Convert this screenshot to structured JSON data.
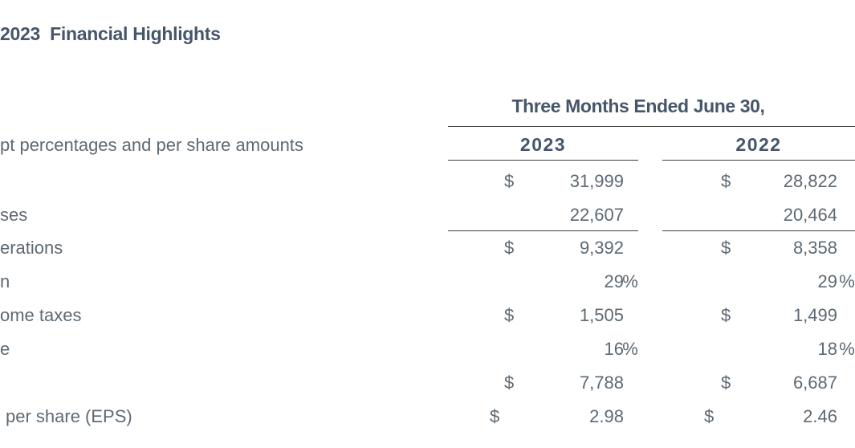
{
  "page": {
    "title": "2023  Financial Highlights",
    "subtitle_fragment": "pt percentages and per share amounts"
  },
  "colors": {
    "heading": "#46566a",
    "body": "#5e6973",
    "rule": "#3c3c3c"
  },
  "table": {
    "group_header": "Three Months Ended June 30,",
    "columns": [
      {
        "label": "2023"
      },
      {
        "label": "2022"
      }
    ],
    "rows": [
      {
        "label": "",
        "cells": [
          {
            "dollar": "$",
            "value": "31,999",
            "suffix": ""
          },
          {
            "dollar": "$",
            "value": "28,822",
            "suffix": ""
          }
        ]
      },
      {
        "label": "ses",
        "cells": [
          {
            "dollar": "",
            "value": "22,607",
            "suffix": ""
          },
          {
            "dollar": "",
            "value": "20,464",
            "suffix": ""
          }
        ]
      },
      {
        "label": "erations",
        "cells": [
          {
            "dollar": "$",
            "value": "9,392",
            "suffix": ""
          },
          {
            "dollar": "$",
            "value": "8,358",
            "suffix": ""
          }
        ]
      },
      {
        "label": "n",
        "cells": [
          {
            "dollar": "",
            "value": "29",
            "suffix": "%"
          },
          {
            "dollar": "",
            "value": "29",
            "suffix": "%"
          }
        ]
      },
      {
        "label": "ome taxes",
        "cells": [
          {
            "dollar": "$",
            "value": "1,505",
            "suffix": ""
          },
          {
            "dollar": "$",
            "value": "1,499",
            "suffix": ""
          }
        ]
      },
      {
        "label": "e",
        "cells": [
          {
            "dollar": "",
            "value": "16",
            "suffix": "%"
          },
          {
            "dollar": "",
            "value": "18",
            "suffix": "%"
          }
        ]
      },
      {
        "label": "",
        "cells": [
          {
            "dollar": "$",
            "value": "7,788",
            "suffix": ""
          },
          {
            "dollar": "$",
            "value": "6,687",
            "suffix": ""
          }
        ]
      },
      {
        "label": "per share (EPS)",
        "eps": true,
        "cells": [
          {
            "dollar": "$",
            "value": "2.98",
            "suffix": ""
          },
          {
            "dollar": "$",
            "value": "2.46",
            "suffix": ""
          }
        ]
      }
    ]
  }
}
